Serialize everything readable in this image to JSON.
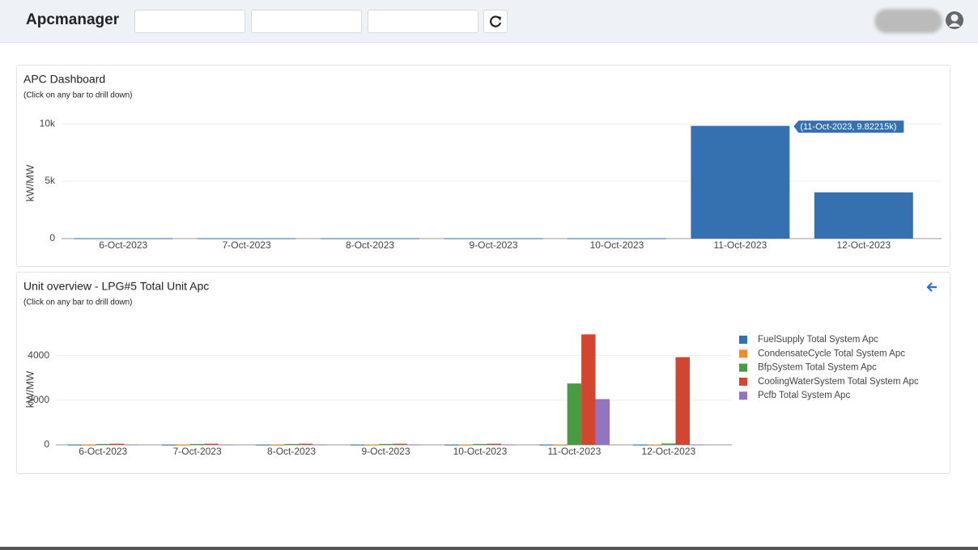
{
  "app": {
    "title": "Apcmanager"
  },
  "chart_data": [
    {
      "type": "bar",
      "title": "APC Dashboard",
      "subtitle": "(Click on any bar to drill down)",
      "y_label": "kW/MW",
      "categories": [
        "6-Oct-2023",
        "7-Oct-2023",
        "8-Oct-2023",
        "9-Oct-2023",
        "10-Oct-2023",
        "11-Oct-2023",
        "12-Oct-2023"
      ],
      "values": [
        30,
        30,
        30,
        30,
        30,
        9822.15,
        4030
      ],
      "color": "#3570b0",
      "ylim": [
        0,
        10500
      ],
      "yticks": [
        0,
        {
          "value": 5000,
          "label": "5k"
        },
        {
          "value": 10000,
          "label": "10k"
        }
      ],
      "grid": true,
      "annotation": "(11-Oct-2023, 9.82215k)"
    },
    {
      "type": "grouped_bar",
      "title": "Unit overview - LPG#5 Total Unit Apc",
      "subtitle": "(Click on any bar to drill down)",
      "y_label": "kW/MW",
      "categories": [
        "6-Oct-2023",
        "7-Oct-2023",
        "8-Oct-2023",
        "9-Oct-2023",
        "10-Oct-2023",
        "11-Oct-2023",
        "12-Oct-2023"
      ],
      "series": [
        {
          "name": "FuelSupply Total System Apc",
          "color": "#3570b0",
          "values": [
            10,
            10,
            10,
            10,
            10,
            10,
            10
          ]
        },
        {
          "name": "CondensateCycle Total System Apc",
          "color": "#f58a2c",
          "values": [
            5,
            5,
            5,
            5,
            5,
            5,
            5
          ]
        },
        {
          "name": "BfpSystem Total System Apc",
          "color": "#4a9a44",
          "values": [
            40,
            40,
            40,
            40,
            40,
            2750,
            60
          ]
        },
        {
          "name": "CoolingWaterSystem Total System Apc",
          "color": "#d2452f",
          "values": [
            50,
            50,
            50,
            50,
            50,
            4950,
            3930
          ]
        },
        {
          "name": "Pcfb Total System Apc",
          "color": "#9474bf",
          "values": [
            20,
            20,
            20,
            20,
            20,
            2050,
            20
          ]
        }
      ],
      "ylim": [
        0,
        5400
      ],
      "yticks": [
        0,
        2000,
        4000
      ],
      "grid": true
    }
  ]
}
